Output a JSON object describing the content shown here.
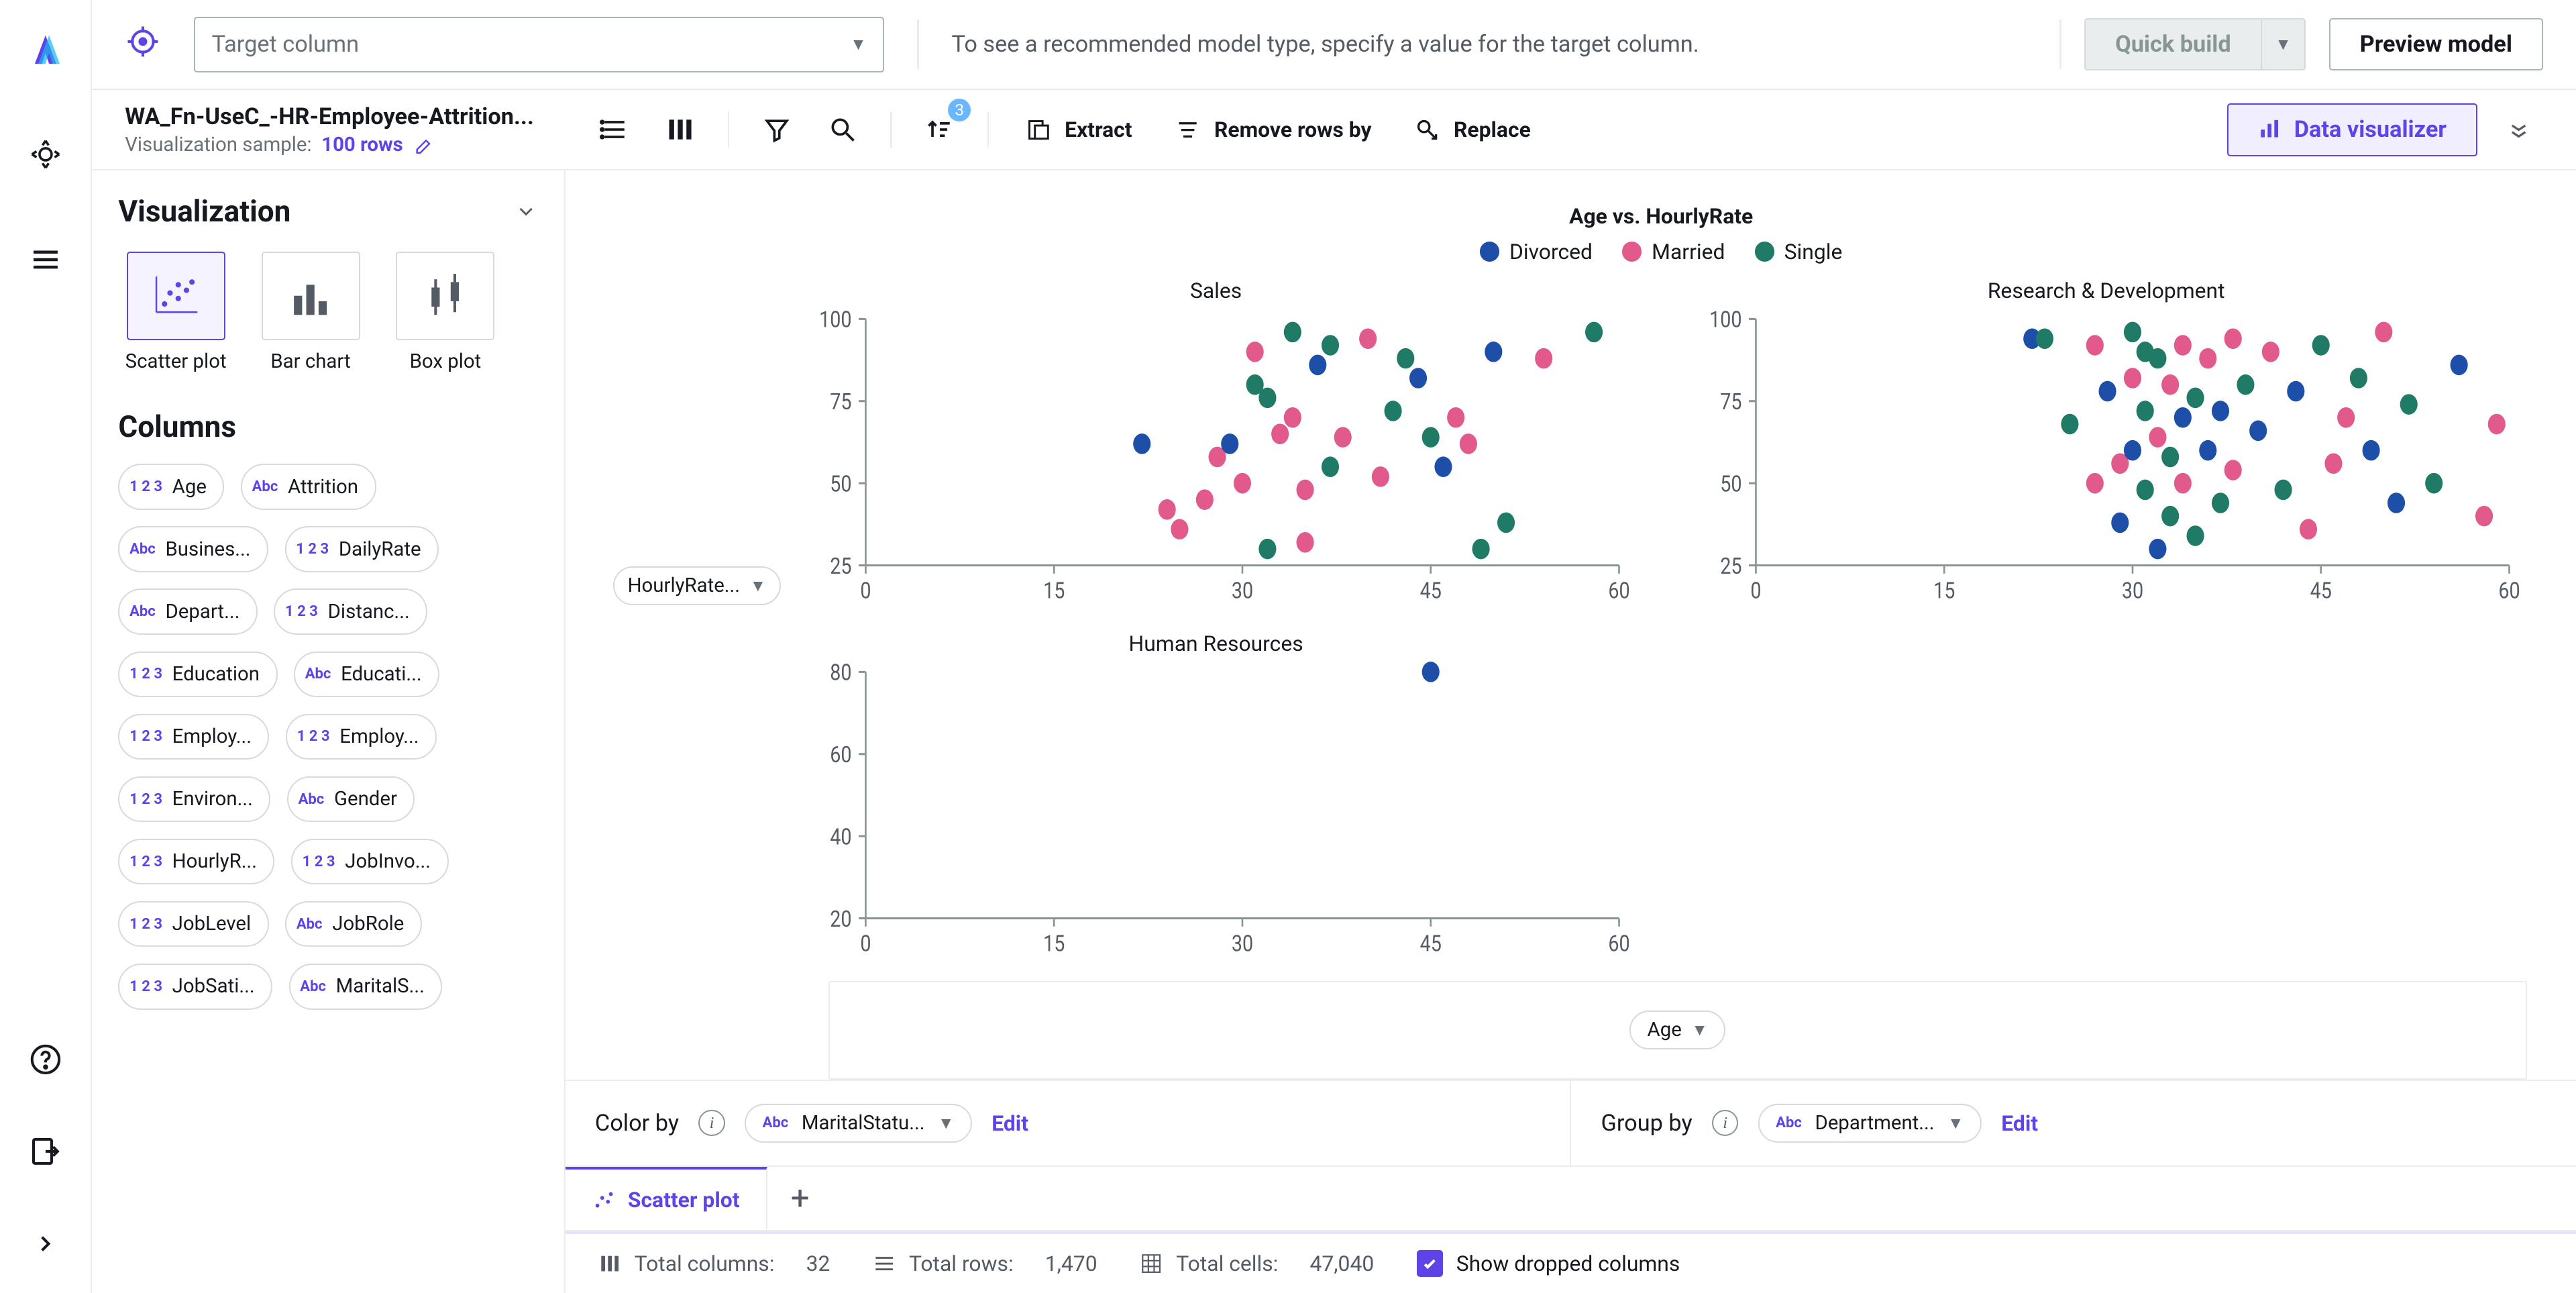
{
  "rail": {
    "logo_gradient": [
      "#5f43e8",
      "#18b8f0"
    ]
  },
  "topbar": {
    "target_placeholder": "Target column",
    "hint": "To see a recommended model type, specify a value for the target column.",
    "quick_build": "Quick build",
    "preview_model": "Preview model"
  },
  "secondbar": {
    "dataset_name": "WA_Fn-UseC_-HR-Employee-Attrition...",
    "sample_label": "Visualization sample:",
    "sample_value": "100 rows",
    "sort_badge": "3",
    "extract": "Extract",
    "remove_rows": "Remove rows by",
    "replace": "Replace",
    "data_visualizer": "Data visualizer"
  },
  "viz_panel": {
    "title": "Visualization",
    "chart_types": [
      {
        "id": "scatter",
        "label": "Scatter plot",
        "active": true
      },
      {
        "id": "bar",
        "label": "Bar chart",
        "active": false
      },
      {
        "id": "box",
        "label": "Box plot",
        "active": false
      }
    ],
    "columns_title": "Columns",
    "columns": [
      {
        "t": "123",
        "n": "Age"
      },
      {
        "t": "Abc",
        "n": "Attrition"
      },
      {
        "t": "Abc",
        "n": "Busines..."
      },
      {
        "t": "123",
        "n": "DailyRate"
      },
      {
        "t": "Abc",
        "n": "Depart..."
      },
      {
        "t": "123",
        "n": "Distanc..."
      },
      {
        "t": "123",
        "n": "Education"
      },
      {
        "t": "Abc",
        "n": "Educati..."
      },
      {
        "t": "123",
        "n": "Employ..."
      },
      {
        "t": "123",
        "n": "Employ..."
      },
      {
        "t": "123",
        "n": "Environ..."
      },
      {
        "t": "Abc",
        "n": "Gender"
      },
      {
        "t": "123",
        "n": "HourlyR..."
      },
      {
        "t": "123",
        "n": "JobInvo..."
      },
      {
        "t": "123",
        "n": "JobLevel"
      },
      {
        "t": "Abc",
        "n": "JobRole"
      },
      {
        "t": "123",
        "n": "JobSati..."
      },
      {
        "t": "Abc",
        "n": "MaritalS..."
      }
    ]
  },
  "chart": {
    "title": "Age vs. HourlyRate",
    "legend": [
      {
        "label": "Divorced",
        "color": "#1d4ea8"
      },
      {
        "label": "Married",
        "color": "#e2598b"
      },
      {
        "label": "Single",
        "color": "#1f7a66"
      }
    ],
    "y_pill": "HourlyRate...",
    "x_pill": "Age",
    "x_domain": [
      0,
      60
    ],
    "x_ticks": [
      0,
      15,
      30,
      45,
      60
    ],
    "facets": [
      {
        "title": "Sales",
        "y_domain": [
          25,
          100
        ],
        "y_ticks": [
          25,
          50,
          75,
          100
        ],
        "points": [
          {
            "x": 22,
            "y": 62,
            "c": 0
          },
          {
            "x": 24,
            "y": 42,
            "c": 1
          },
          {
            "x": 25,
            "y": 36,
            "c": 1
          },
          {
            "x": 27,
            "y": 45,
            "c": 1
          },
          {
            "x": 28,
            "y": 58,
            "c": 1
          },
          {
            "x": 29,
            "y": 62,
            "c": 0
          },
          {
            "x": 30,
            "y": 50,
            "c": 1
          },
          {
            "x": 31,
            "y": 80,
            "c": 2
          },
          {
            "x": 31,
            "y": 90,
            "c": 1
          },
          {
            "x": 32,
            "y": 30,
            "c": 2
          },
          {
            "x": 32,
            "y": 76,
            "c": 2
          },
          {
            "x": 33,
            "y": 65,
            "c": 1
          },
          {
            "x": 34,
            "y": 96,
            "c": 2
          },
          {
            "x": 34,
            "y": 70,
            "c": 1
          },
          {
            "x": 35,
            "y": 48,
            "c": 1
          },
          {
            "x": 35,
            "y": 32,
            "c": 1
          },
          {
            "x": 36,
            "y": 86,
            "c": 0
          },
          {
            "x": 37,
            "y": 55,
            "c": 2
          },
          {
            "x": 37,
            "y": 92,
            "c": 2
          },
          {
            "x": 38,
            "y": 64,
            "c": 1
          },
          {
            "x": 40,
            "y": 94,
            "c": 1
          },
          {
            "x": 41,
            "y": 52,
            "c": 1
          },
          {
            "x": 42,
            "y": 72,
            "c": 2
          },
          {
            "x": 43,
            "y": 88,
            "c": 2
          },
          {
            "x": 44,
            "y": 82,
            "c": 0
          },
          {
            "x": 45,
            "y": 64,
            "c": 2
          },
          {
            "x": 46,
            "y": 55,
            "c": 0
          },
          {
            "x": 47,
            "y": 70,
            "c": 1
          },
          {
            "x": 48,
            "y": 62,
            "c": 1
          },
          {
            "x": 49,
            "y": 30,
            "c": 2
          },
          {
            "x": 50,
            "y": 90,
            "c": 0
          },
          {
            "x": 51,
            "y": 38,
            "c": 2
          },
          {
            "x": 54,
            "y": 88,
            "c": 1
          },
          {
            "x": 58,
            "y": 96,
            "c": 2
          }
        ]
      },
      {
        "title": "Research & Development",
        "y_domain": [
          25,
          100
        ],
        "y_ticks": [
          25,
          50,
          75,
          100
        ],
        "points": [
          {
            "x": 22,
            "y": 94,
            "c": 0
          },
          {
            "x": 23,
            "y": 94,
            "c": 2
          },
          {
            "x": 25,
            "y": 68,
            "c": 2
          },
          {
            "x": 27,
            "y": 50,
            "c": 1
          },
          {
            "x": 27,
            "y": 92,
            "c": 1
          },
          {
            "x": 28,
            "y": 78,
            "c": 0
          },
          {
            "x": 29,
            "y": 38,
            "c": 0
          },
          {
            "x": 29,
            "y": 56,
            "c": 1
          },
          {
            "x": 30,
            "y": 96,
            "c": 2
          },
          {
            "x": 30,
            "y": 82,
            "c": 1
          },
          {
            "x": 30,
            "y": 60,
            "c": 0
          },
          {
            "x": 31,
            "y": 90,
            "c": 2
          },
          {
            "x": 31,
            "y": 48,
            "c": 2
          },
          {
            "x": 31,
            "y": 72,
            "c": 2
          },
          {
            "x": 32,
            "y": 30,
            "c": 0
          },
          {
            "x": 32,
            "y": 88,
            "c": 2
          },
          {
            "x": 32,
            "y": 64,
            "c": 1
          },
          {
            "x": 33,
            "y": 80,
            "c": 1
          },
          {
            "x": 33,
            "y": 40,
            "c": 2
          },
          {
            "x": 33,
            "y": 58,
            "c": 2
          },
          {
            "x": 34,
            "y": 92,
            "c": 1
          },
          {
            "x": 34,
            "y": 70,
            "c": 0
          },
          {
            "x": 34,
            "y": 50,
            "c": 1
          },
          {
            "x": 35,
            "y": 76,
            "c": 2
          },
          {
            "x": 35,
            "y": 34,
            "c": 2
          },
          {
            "x": 36,
            "y": 60,
            "c": 0
          },
          {
            "x": 36,
            "y": 88,
            "c": 1
          },
          {
            "x": 37,
            "y": 44,
            "c": 2
          },
          {
            "x": 37,
            "y": 72,
            "c": 0
          },
          {
            "x": 38,
            "y": 94,
            "c": 1
          },
          {
            "x": 38,
            "y": 54,
            "c": 1
          },
          {
            "x": 39,
            "y": 80,
            "c": 2
          },
          {
            "x": 40,
            "y": 66,
            "c": 0
          },
          {
            "x": 41,
            "y": 90,
            "c": 1
          },
          {
            "x": 42,
            "y": 48,
            "c": 2
          },
          {
            "x": 43,
            "y": 78,
            "c": 0
          },
          {
            "x": 44,
            "y": 36,
            "c": 1
          },
          {
            "x": 45,
            "y": 92,
            "c": 2
          },
          {
            "x": 46,
            "y": 56,
            "c": 1
          },
          {
            "x": 47,
            "y": 70,
            "c": 1
          },
          {
            "x": 48,
            "y": 82,
            "c": 2
          },
          {
            "x": 49,
            "y": 60,
            "c": 0
          },
          {
            "x": 50,
            "y": 96,
            "c": 1
          },
          {
            "x": 51,
            "y": 44,
            "c": 0
          },
          {
            "x": 52,
            "y": 74,
            "c": 2
          },
          {
            "x": 54,
            "y": 50,
            "c": 2
          },
          {
            "x": 56,
            "y": 86,
            "c": 0
          },
          {
            "x": 58,
            "y": 40,
            "c": 1
          },
          {
            "x": 59,
            "y": 68,
            "c": 1
          }
        ]
      },
      {
        "title": "Human Resources",
        "y_domain": [
          20,
          80
        ],
        "y_ticks": [
          20,
          40,
          60,
          80
        ],
        "points": [
          {
            "x": 45,
            "y": 80,
            "c": 0
          }
        ]
      }
    ]
  },
  "controls": {
    "color_by_label": "Color by",
    "color_by_value": "MaritalStatu...",
    "color_by_type": "Abc",
    "group_by_label": "Group by",
    "group_by_value": "Department...",
    "group_by_type": "Abc",
    "edit": "Edit"
  },
  "tabs": {
    "scatter": "Scatter plot"
  },
  "status": {
    "cols_label": "Total columns:",
    "cols": "32",
    "rows_label": "Total rows:",
    "rows": "1,470",
    "cells_label": "Total cells:",
    "cells": "47,040",
    "show_dropped": "Show dropped columns"
  },
  "colors": {
    "primary": "#5f43e8",
    "border": "#eaeded",
    "text_muted": "#687078"
  }
}
